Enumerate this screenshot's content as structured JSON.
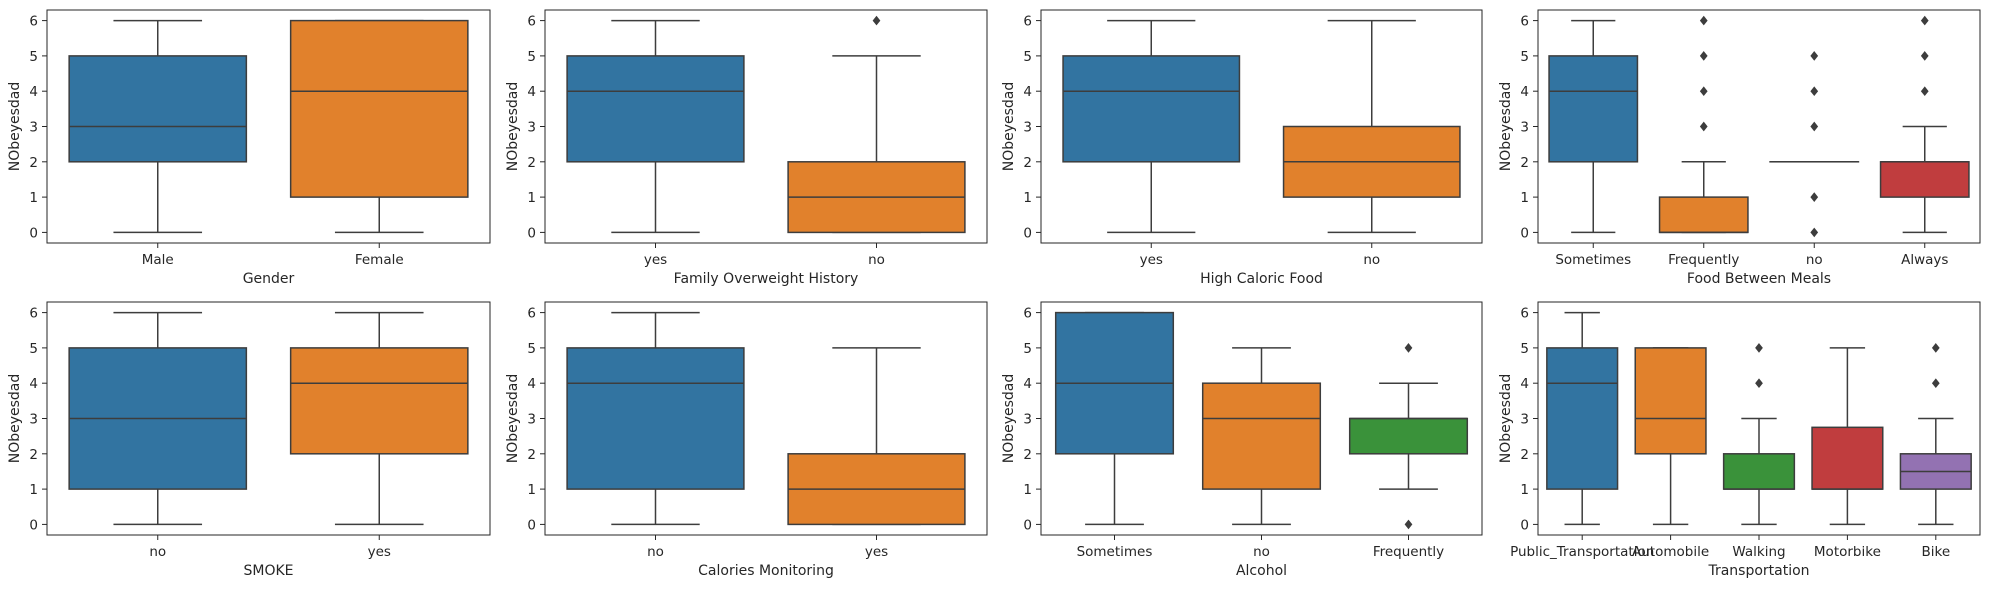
{
  "chart_data": [
    {
      "type": "boxplot",
      "xlabel": "Gender",
      "ylabel": "NObeyesdad",
      "ylim": [
        -0.3,
        6.3
      ],
      "yticks": [
        0,
        1,
        2,
        3,
        4,
        5,
        6
      ],
      "categories": [
        "Male",
        "Female"
      ],
      "colors": [
        "#3274a1",
        "#e1812c"
      ],
      "boxes": [
        {
          "whislo": 0,
          "q1": 2,
          "med": 3,
          "q3": 5,
          "whishi": 6,
          "fliers": []
        },
        {
          "whislo": 0,
          "q1": 1,
          "med": 4,
          "q3": 6,
          "whishi": 6,
          "fliers": []
        }
      ]
    },
    {
      "type": "boxplot",
      "xlabel": "Family Overweight History",
      "ylabel": "NObeyesdad",
      "ylim": [
        -0.3,
        6.3
      ],
      "yticks": [
        0,
        1,
        2,
        3,
        4,
        5,
        6
      ],
      "categories": [
        "yes",
        "no"
      ],
      "colors": [
        "#3274a1",
        "#e1812c"
      ],
      "boxes": [
        {
          "whislo": 0,
          "q1": 2,
          "med": 4,
          "q3": 5,
          "whishi": 6,
          "fliers": []
        },
        {
          "whislo": 0,
          "q1": 0,
          "med": 1,
          "q3": 2,
          "whishi": 5,
          "fliers": [
            6
          ]
        }
      ]
    },
    {
      "type": "boxplot",
      "xlabel": "High Caloric Food",
      "ylabel": "NObeyesdad",
      "ylim": [
        -0.3,
        6.3
      ],
      "yticks": [
        0,
        1,
        2,
        3,
        4,
        5,
        6
      ],
      "categories": [
        "yes",
        "no"
      ],
      "colors": [
        "#3274a1",
        "#e1812c"
      ],
      "boxes": [
        {
          "whislo": 0,
          "q1": 2,
          "med": 4,
          "q3": 5,
          "whishi": 6,
          "fliers": []
        },
        {
          "whislo": 0,
          "q1": 1,
          "med": 2,
          "q3": 3,
          "whishi": 6,
          "fliers": []
        }
      ]
    },
    {
      "type": "boxplot",
      "xlabel": "Food Between Meals",
      "ylabel": "NObeyesdad",
      "ylim": [
        -0.3,
        6.3
      ],
      "yticks": [
        0,
        1,
        2,
        3,
        4,
        5,
        6
      ],
      "categories": [
        "Sometimes",
        "Frequently",
        "no",
        "Always"
      ],
      "colors": [
        "#3274a1",
        "#e1812c",
        "#3a923a",
        "#c03d3e"
      ],
      "boxes": [
        {
          "whislo": 0,
          "q1": 2,
          "med": 4,
          "q3": 5,
          "whishi": 6,
          "fliers": []
        },
        {
          "whislo": 0,
          "q1": 0,
          "med": 0,
          "q3": 1,
          "whishi": 2,
          "fliers": [
            3,
            4,
            5,
            6
          ]
        },
        {
          "whislo": 2,
          "q1": 2,
          "med": 2,
          "q3": 2,
          "whishi": 2,
          "fliers": [
            0,
            1,
            3,
            4,
            5
          ]
        },
        {
          "whislo": 0,
          "q1": 1,
          "med": 2,
          "q3": 2,
          "whishi": 3,
          "fliers": [
            4,
            5,
            6
          ]
        }
      ]
    },
    {
      "type": "boxplot",
      "xlabel": "SMOKE",
      "ylabel": "NObeyesdad",
      "ylim": [
        -0.3,
        6.3
      ],
      "yticks": [
        0,
        1,
        2,
        3,
        4,
        5,
        6
      ],
      "categories": [
        "no",
        "yes"
      ],
      "colors": [
        "#3274a1",
        "#e1812c"
      ],
      "boxes": [
        {
          "whislo": 0,
          "q1": 1,
          "med": 3,
          "q3": 5,
          "whishi": 6,
          "fliers": []
        },
        {
          "whislo": 0,
          "q1": 2,
          "med": 4,
          "q3": 5,
          "whishi": 6,
          "fliers": []
        }
      ]
    },
    {
      "type": "boxplot",
      "xlabel": "Calories Monitoring",
      "ylabel": "NObeyesdad",
      "ylim": [
        -0.3,
        6.3
      ],
      "yticks": [
        0,
        1,
        2,
        3,
        4,
        5,
        6
      ],
      "categories": [
        "no",
        "yes"
      ],
      "colors": [
        "#3274a1",
        "#e1812c"
      ],
      "boxes": [
        {
          "whislo": 0,
          "q1": 1,
          "med": 4,
          "q3": 5,
          "whishi": 6,
          "fliers": []
        },
        {
          "whislo": 0,
          "q1": 0,
          "med": 1,
          "q3": 2,
          "whishi": 5,
          "fliers": []
        }
      ]
    },
    {
      "type": "boxplot",
      "xlabel": "Alcohol",
      "ylabel": "NObeyesdad",
      "ylim": [
        -0.3,
        6.3
      ],
      "yticks": [
        0,
        1,
        2,
        3,
        4,
        5,
        6
      ],
      "categories": [
        "Sometimes",
        "no",
        "Frequently"
      ],
      "colors": [
        "#3274a1",
        "#e1812c",
        "#3a923a"
      ],
      "boxes": [
        {
          "whislo": 0,
          "q1": 2,
          "med": 4,
          "q3": 6,
          "whishi": 6,
          "fliers": []
        },
        {
          "whislo": 0,
          "q1": 1,
          "med": 3,
          "q3": 4,
          "whishi": 5,
          "fliers": []
        },
        {
          "whislo": 1,
          "q1": 2,
          "med": 3,
          "q3": 3,
          "whishi": 4,
          "fliers": [
            0,
            5
          ]
        }
      ]
    },
    {
      "type": "boxplot",
      "xlabel": "Transportation",
      "ylabel": "NObeyesdad",
      "ylim": [
        -0.3,
        6.3
      ],
      "yticks": [
        0,
        1,
        2,
        3,
        4,
        5,
        6
      ],
      "categories": [
        "Public_Transportation",
        "Automobile",
        "Walking",
        "Motorbike",
        "Bike"
      ],
      "colors": [
        "#3274a1",
        "#e1812c",
        "#3a923a",
        "#c03d3e",
        "#9372b2"
      ],
      "boxes": [
        {
          "whislo": 0,
          "q1": 1,
          "med": 4,
          "q3": 5,
          "whishi": 6,
          "fliers": []
        },
        {
          "whislo": 0,
          "q1": 2,
          "med": 3,
          "q3": 5,
          "whishi": 5,
          "fliers": []
        },
        {
          "whislo": 0,
          "q1": 1,
          "med": 1,
          "q3": 2,
          "whishi": 3,
          "fliers": [
            4,
            5
          ]
        },
        {
          "whislo": 0,
          "q1": 1,
          "med": 1,
          "q3": 2.75,
          "whishi": 5,
          "fliers": []
        },
        {
          "whislo": 0,
          "q1": 1,
          "med": 1.5,
          "q3": 2,
          "whishi": 3,
          "fliers": [
            4,
            5
          ]
        }
      ]
    }
  ]
}
